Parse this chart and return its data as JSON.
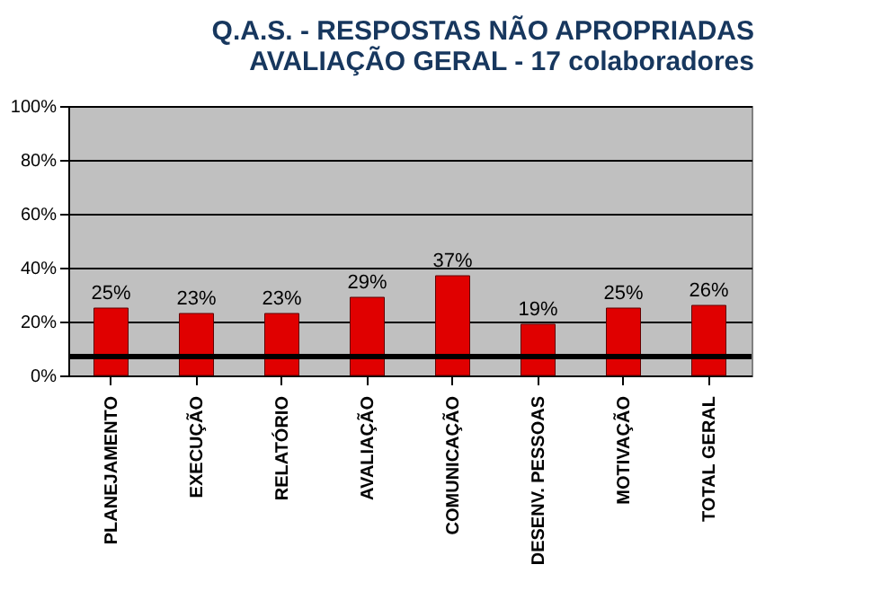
{
  "chart_data": {
    "type": "bar",
    "title": [
      "Q.A.S. - RESPOSTAS NÃO APROPRIADAS",
      "AVALIAÇÃO  GERAL - 17 colaboradores"
    ],
    "categories": [
      "PLANEJAMENTO",
      "EXECUÇÃO",
      "RELATÓRIO",
      "AVALIAÇÃO",
      "COMUNICAÇÃO",
      "DESENV. PESSOAS",
      "MOTIVAÇÃO",
      "TOTAL GERAL"
    ],
    "values": [
      25,
      23,
      23,
      29,
      37,
      19,
      25,
      26
    ],
    "color": "#e00000",
    "ylim": [
      0,
      100
    ],
    "yticks": [
      {
        "value": 0,
        "label": "0%"
      },
      {
        "value": 20,
        "label": "20%"
      },
      {
        "value": 40,
        "label": "40%"
      },
      {
        "value": 60,
        "label": "60%"
      },
      {
        "value": 80,
        "label": "80%"
      },
      {
        "value": 100,
        "label": "100%"
      }
    ],
    "value_labels": [
      "25%",
      "23%",
      "23%",
      "29%",
      "37%",
      "19%",
      "25%",
      "26%"
    ],
    "ref_lines": [
      {
        "axis": "y",
        "value": 7,
        "color": "#000000"
      }
    ],
    "grid": "y"
  }
}
